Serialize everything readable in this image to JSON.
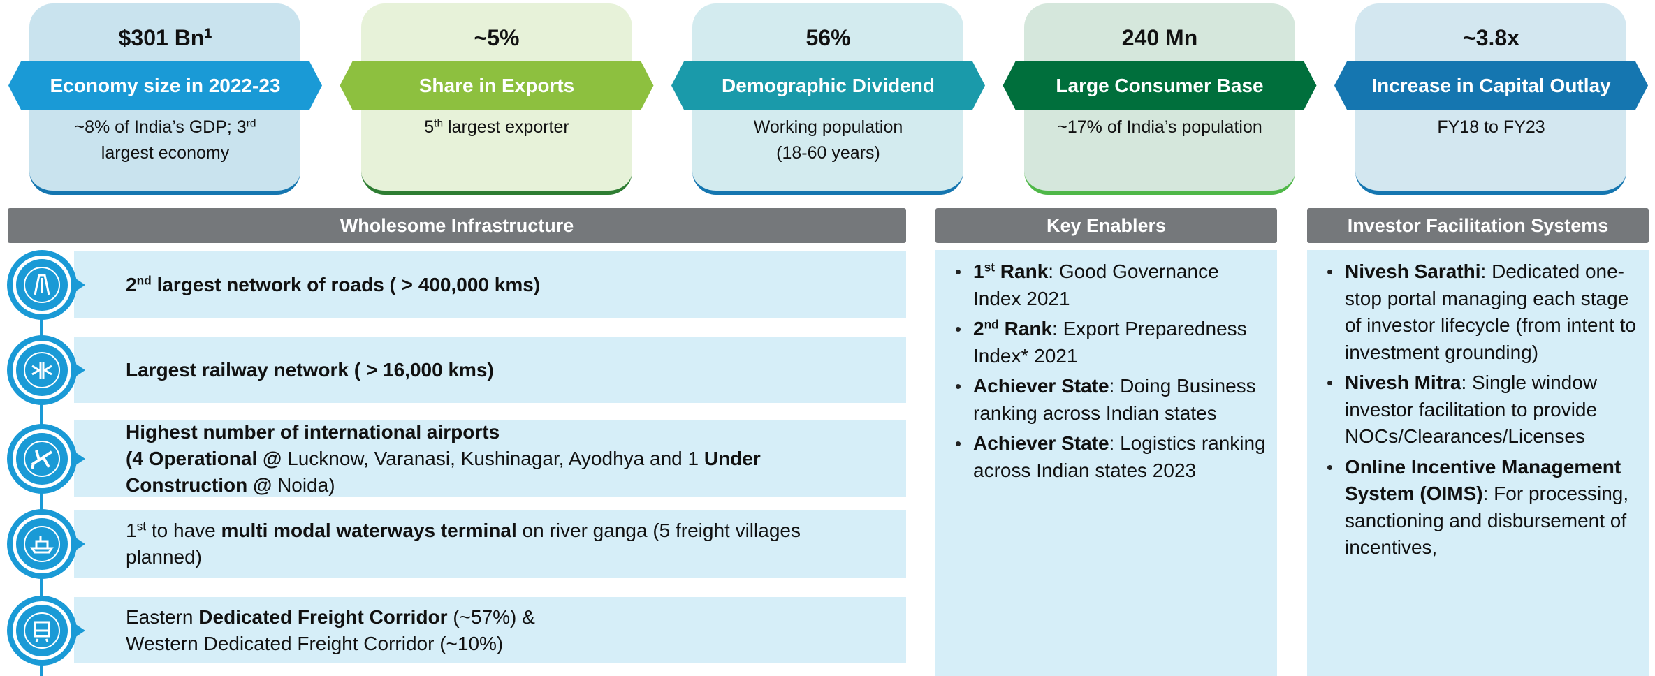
{
  "cards": [
    {
      "value": [
        "$301 Bn",
        {
          "text": "1",
          "sup": true
        }
      ],
      "title": "Economy size in 2022-23",
      "desc": [
        [
          "~8% of India’s GDP; 3",
          {
            "text": "rd",
            "sup": true
          }
        ],
        [
          "largest economy"
        ]
      ]
    },
    {
      "value": [
        "~5%"
      ],
      "title": "Share in Exports",
      "desc": [
        [
          "5",
          {
            "text": "th",
            "sup": true
          },
          " largest exporter"
        ]
      ]
    },
    {
      "value": [
        "56%"
      ],
      "title": "Demographic Dividend",
      "desc": [
        [
          "Working population"
        ],
        [
          "(18-60 years)"
        ]
      ]
    },
    {
      "value": [
        "240 Mn"
      ],
      "title": "Large Consumer Base",
      "desc": [
        [
          "~17% of India’s population"
        ]
      ]
    },
    {
      "value": [
        "~3.8x"
      ],
      "title": "Increase in Capital Outlay",
      "desc": [
        [
          "FY18 to FY23"
        ]
      ]
    }
  ],
  "infrastructure": {
    "title": "Wholesome Infrastructure",
    "rows": [
      [
        [
          {
            "text": "2",
            "bold": true
          },
          {
            "text": "nd",
            "bold": true,
            "sup": true
          },
          {
            "text": " largest network of roads ( > 400,000 kms)",
            "bold": true
          }
        ]
      ],
      [
        [
          {
            "text": "Largest railway network ( > 16,000 kms)",
            "bold": true
          }
        ]
      ],
      [
        [
          {
            "text": "Highest number of international airports",
            "bold": true
          }
        ],
        [
          {
            "text": "(4 Operational @",
            "bold": true
          },
          " Lucknow, Varanasi, Kushinagar, Ayodhya and 1 ",
          {
            "text": "Under Construction @",
            "bold": true
          },
          " Noida)"
        ]
      ],
      [
        [
          "1",
          {
            "text": "st",
            "sup": true
          },
          " to have ",
          {
            "text": "multi modal waterways terminal",
            "bold": true
          },
          " on river ganga (5 freight villages planned)"
        ]
      ],
      [
        [
          "Eastern ",
          {
            "text": "Dedicated Freight Corridor",
            "bold": true
          },
          " (~57%) &"
        ],
        [
          "Western Dedicated Freight Corridor (~10%)"
        ]
      ]
    ]
  },
  "enablers": {
    "title": "Key Enablers",
    "items": [
      [
        {
          "text": "1",
          "bold": true
        },
        {
          "text": "st",
          "bold": true,
          "sup": true
        },
        {
          "text": " Rank",
          "bold": true
        },
        ": Good Governance Index 2021"
      ],
      [
        {
          "text": "2",
          "bold": true
        },
        {
          "text": "nd",
          "bold": true,
          "sup": true
        },
        {
          "text": " Rank",
          "bold": true
        },
        ": Export Preparedness Index* 2021"
      ],
      [
        {
          "text": "Achiever State",
          "bold": true
        },
        ": Doing Business ranking across Indian states"
      ],
      [
        {
          "text": "Achiever State",
          "bold": true
        },
        ": Logistics ranking across Indian states 2023"
      ]
    ]
  },
  "facilitation": {
    "title": "Investor Facilitation Systems",
    "items": [
      [
        {
          "text": "Nivesh Sarathi",
          "bold": true
        },
        ": Dedicated one-stop portal managing each stage of investor lifecycle (from intent to investment grounding)"
      ],
      [
        {
          "text": "Nivesh Mitra",
          "bold": true
        },
        ": Single window investor facilitation to provide NOCs/Clearances/Licenses"
      ],
      [
        {
          "text": "Online Incentive Management System (OIMS)",
          "bold": true
        },
        ": For processing, sanctioning and disbursement of incentives,"
      ]
    ]
  }
}
